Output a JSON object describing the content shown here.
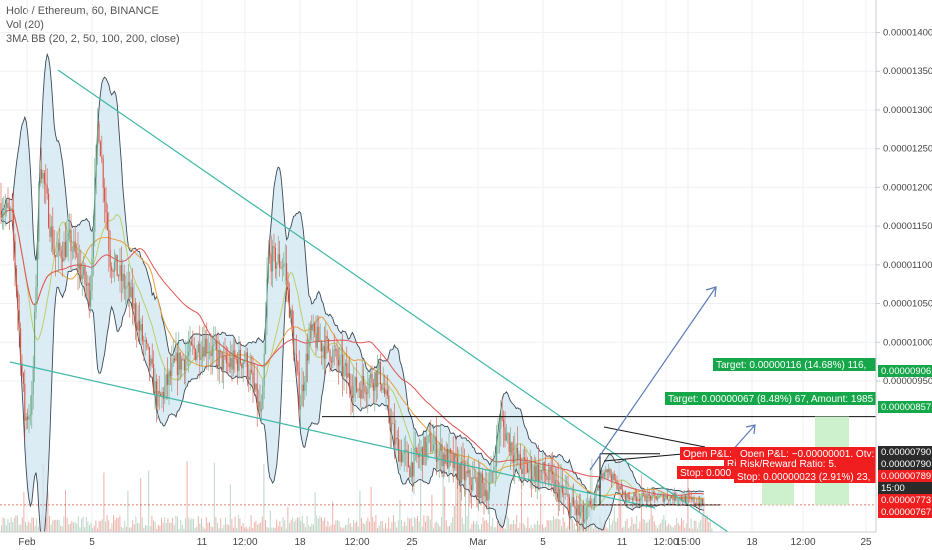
{
  "legend": {
    "symbol": "Holo / Ethereum, 60, BINANCE",
    "volume": "Vol (20)",
    "indicator": "3MA BB (20, 2, 50, 100, 200, close)"
  },
  "colors": {
    "background": "#ffffff",
    "grid": "#eef1f6",
    "candle_up": "#6ba583",
    "candle_down": "#d75442",
    "bb_fill": "#cfe6f2",
    "bb_line": "#3b4a57",
    "ma50": "#e8a03d",
    "ma100": "#e05555",
    "ma200": "#b9d06a",
    "trendline": "#3fb8a6",
    "level_line": "#111111",
    "arrow": "#5b7bb8",
    "target_green": "#16a74a",
    "stop_red": "#f01e1e",
    "green_zone": "#c9efc8",
    "red_zone": "#f9c9c9"
  },
  "chart_data": {
    "type": "candlestick",
    "yaxis": {
      "ylim": [
        7.55e-06,
        1.442e-05
      ],
      "ticks": [
        "0.00001400",
        "0.00001350",
        "0.00001300",
        "0.00001250",
        "0.00001200",
        "0.00001150",
        "0.00001100",
        "0.00001050",
        "0.00001000",
        "0.00000950"
      ]
    },
    "xaxis": {
      "tick_labels": [
        "Feb",
        "5",
        "11",
        "12:00",
        "18",
        "12:00",
        "25",
        "Mar",
        "5",
        "11",
        "12:00",
        "15:00",
        "18",
        "12:00",
        "25"
      ]
    },
    "price_badges": [
      {
        "value": "0.00000906",
        "color": "#16a74a"
      },
      {
        "value": "0.00000857",
        "color": "#16a74a"
      },
      {
        "value": "0.00000790",
        "color": "#2b2b2b"
      },
      {
        "value": "0.00000790",
        "color": "#2b2b2b"
      },
      {
        "value": "0.00000789",
        "color": "#f01e1e"
      },
      {
        "value": "15:00",
        "color": "#2b2b2b"
      },
      {
        "value": "0.00000773",
        "color": "#f01e1e"
      },
      {
        "value": "0.00000767",
        "color": "#f01e1e"
      }
    ],
    "levels": {
      "resistance": 9.04e-06,
      "flag_top": 8.56e-06,
      "flag_bottom": 7.9e-06,
      "current": 7.9e-06
    },
    "trendlines": [
      {
        "name": "upper",
        "from": [
          "late Jan",
          1.345e-05
        ],
        "to": [
          "~12 Mar",
          7.45e-06
        ]
      },
      {
        "name": "lower",
        "from": [
          "late Jan",
          9.15e-06
        ],
        "to": [
          "~8 Mar",
          7.7e-06
        ]
      }
    ],
    "positions": [
      {
        "target": "Target: 0.00000116 (14.68%) 116,",
        "pnl": "Open P&L: −0.00000001, Qty: ",
        "ratio": "Risk/Reward Ratio: 5.",
        "stop": "Stop: 0.00000023 (2.91%) 23,"
      },
      {
        "target": "Target: 0.00000067 (8.48%) 67, Amount: 1985",
        "pnl": "Open P&L: ",
        "ratio": "Ri",
        "stop": "Stop: 0.000"
      }
    ],
    "series_description": "hourly HOT/ETH candles in a falling wedge, Feb – mid Mar"
  }
}
